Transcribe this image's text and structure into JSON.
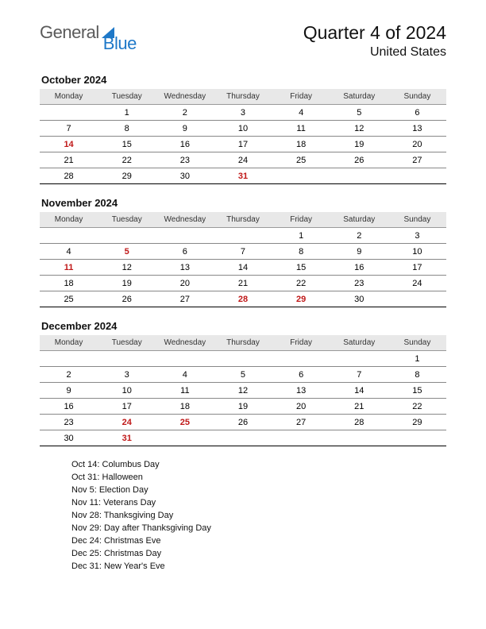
{
  "logo": {
    "part1": "General",
    "part2": "Blue",
    "color1": "#5a5a5a",
    "color2": "#1e78c8"
  },
  "title": "Quarter 4 of 2024",
  "subtitle": "United States",
  "day_headers": [
    "Monday",
    "Tuesday",
    "Wednesday",
    "Thursday",
    "Friday",
    "Saturday",
    "Sunday"
  ],
  "months": [
    {
      "name": "October 2024",
      "weeks": [
        [
          {
            "d": ""
          },
          {
            "d": "1"
          },
          {
            "d": "2"
          },
          {
            "d": "3"
          },
          {
            "d": "4"
          },
          {
            "d": "5"
          },
          {
            "d": "6"
          }
        ],
        [
          {
            "d": "7"
          },
          {
            "d": "8"
          },
          {
            "d": "9"
          },
          {
            "d": "10"
          },
          {
            "d": "11"
          },
          {
            "d": "12"
          },
          {
            "d": "13"
          }
        ],
        [
          {
            "d": "14",
            "h": true
          },
          {
            "d": "15"
          },
          {
            "d": "16"
          },
          {
            "d": "17"
          },
          {
            "d": "18"
          },
          {
            "d": "19"
          },
          {
            "d": "20"
          }
        ],
        [
          {
            "d": "21"
          },
          {
            "d": "22"
          },
          {
            "d": "23"
          },
          {
            "d": "24"
          },
          {
            "d": "25"
          },
          {
            "d": "26"
          },
          {
            "d": "27"
          }
        ],
        [
          {
            "d": "28"
          },
          {
            "d": "29"
          },
          {
            "d": "30"
          },
          {
            "d": "31",
            "h": true
          },
          {
            "d": ""
          },
          {
            "d": ""
          },
          {
            "d": ""
          }
        ]
      ]
    },
    {
      "name": "November 2024",
      "weeks": [
        [
          {
            "d": ""
          },
          {
            "d": ""
          },
          {
            "d": ""
          },
          {
            "d": ""
          },
          {
            "d": "1"
          },
          {
            "d": "2"
          },
          {
            "d": "3"
          }
        ],
        [
          {
            "d": "4"
          },
          {
            "d": "5",
            "h": true
          },
          {
            "d": "6"
          },
          {
            "d": "7"
          },
          {
            "d": "8"
          },
          {
            "d": "9"
          },
          {
            "d": "10"
          }
        ],
        [
          {
            "d": "11",
            "h": true
          },
          {
            "d": "12"
          },
          {
            "d": "13"
          },
          {
            "d": "14"
          },
          {
            "d": "15"
          },
          {
            "d": "16"
          },
          {
            "d": "17"
          }
        ],
        [
          {
            "d": "18"
          },
          {
            "d": "19"
          },
          {
            "d": "20"
          },
          {
            "d": "21"
          },
          {
            "d": "22"
          },
          {
            "d": "23"
          },
          {
            "d": "24"
          }
        ],
        [
          {
            "d": "25"
          },
          {
            "d": "26"
          },
          {
            "d": "27"
          },
          {
            "d": "28",
            "h": true
          },
          {
            "d": "29",
            "h": true
          },
          {
            "d": "30"
          },
          {
            "d": ""
          }
        ]
      ]
    },
    {
      "name": "December 2024",
      "weeks": [
        [
          {
            "d": ""
          },
          {
            "d": ""
          },
          {
            "d": ""
          },
          {
            "d": ""
          },
          {
            "d": ""
          },
          {
            "d": ""
          },
          {
            "d": "1"
          }
        ],
        [
          {
            "d": "2"
          },
          {
            "d": "3"
          },
          {
            "d": "4"
          },
          {
            "d": "5"
          },
          {
            "d": "6"
          },
          {
            "d": "7"
          },
          {
            "d": "8"
          }
        ],
        [
          {
            "d": "9"
          },
          {
            "d": "10"
          },
          {
            "d": "11"
          },
          {
            "d": "12"
          },
          {
            "d": "13"
          },
          {
            "d": "14"
          },
          {
            "d": "15"
          }
        ],
        [
          {
            "d": "16"
          },
          {
            "d": "17"
          },
          {
            "d": "18"
          },
          {
            "d": "19"
          },
          {
            "d": "20"
          },
          {
            "d": "21"
          },
          {
            "d": "22"
          }
        ],
        [
          {
            "d": "23"
          },
          {
            "d": "24",
            "h": true
          },
          {
            "d": "25",
            "h": true
          },
          {
            "d": "26"
          },
          {
            "d": "27"
          },
          {
            "d": "28"
          },
          {
            "d": "29"
          }
        ],
        [
          {
            "d": "30"
          },
          {
            "d": "31",
            "h": true
          },
          {
            "d": ""
          },
          {
            "d": ""
          },
          {
            "d": ""
          },
          {
            "d": ""
          },
          {
            "d": ""
          }
        ]
      ]
    }
  ],
  "holidays": [
    "Oct 14: Columbus Day",
    "Oct 31: Halloween",
    "Nov 5: Election Day",
    "Nov 11: Veterans Day",
    "Nov 28: Thanksgiving Day",
    "Nov 29: Day after Thanksgiving Day",
    "Dec 24: Christmas Eve",
    "Dec 25: Christmas Day",
    "Dec 31: New Year's Eve"
  ],
  "colors": {
    "holiday_text": "#c01818",
    "header_bg": "#e8e8e8",
    "rule": "#888888",
    "rule_heavy": "#000000",
    "background": "#ffffff"
  }
}
